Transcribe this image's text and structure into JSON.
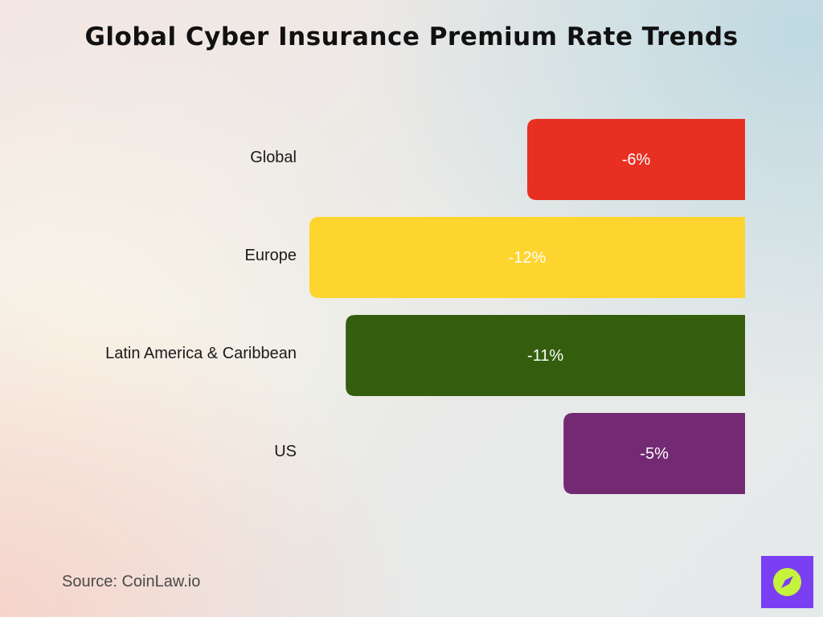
{
  "title": "Global Cyber Insurance Premium Rate Trends",
  "source": "Source: CoinLaw.io",
  "logo": {
    "icon": "compass-icon",
    "background": "#7a3ff2",
    "accent": "#c6f23c"
  },
  "chart_data": {
    "type": "bar",
    "orientation": "horizontal",
    "title": "Global Cyber Insurance Premium Rate Trends",
    "xlabel": "",
    "ylabel": "",
    "categories": [
      "Global",
      "Europe",
      "Latin America & Caribbean",
      "US"
    ],
    "values": [
      -6,
      -12,
      -11,
      -5
    ],
    "value_labels": [
      "-6%",
      "-12%",
      "-11%",
      "-5%"
    ],
    "colors": [
      "#e83022",
      "#fed42f",
      "#345e0e",
      "#732a72"
    ],
    "xlim": [
      -12,
      0
    ],
    "grid": false,
    "legend": "none"
  }
}
